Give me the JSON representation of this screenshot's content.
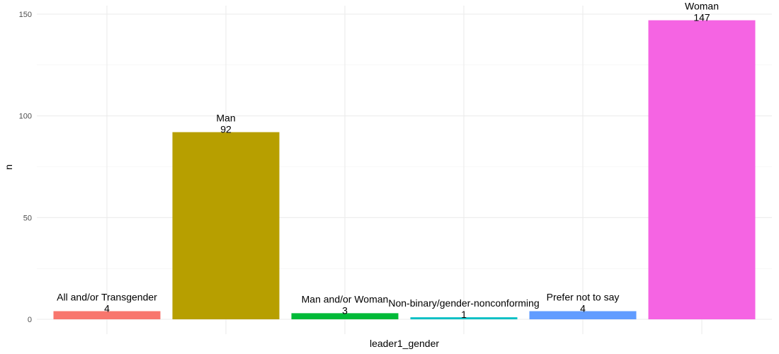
{
  "chart_data": {
    "type": "bar",
    "categories": [
      "All and/or Transgender",
      "Man",
      "Man and/or Woman",
      "Non-binary/gender-nonconforming",
      "Prefer not to say",
      "Woman"
    ],
    "values": [
      4,
      92,
      3,
      1,
      4,
      147
    ],
    "colors": [
      "#F8766D",
      "#B79F00",
      "#00BA38",
      "#00BFC4",
      "#619CFF",
      "#F564E3"
    ],
    "xlabel": "leader1_gender",
    "ylabel": "n",
    "ylim": [
      0,
      150
    ],
    "yticks": [
      0,
      50,
      100,
      150
    ],
    "grid": true,
    "legend": "none"
  }
}
